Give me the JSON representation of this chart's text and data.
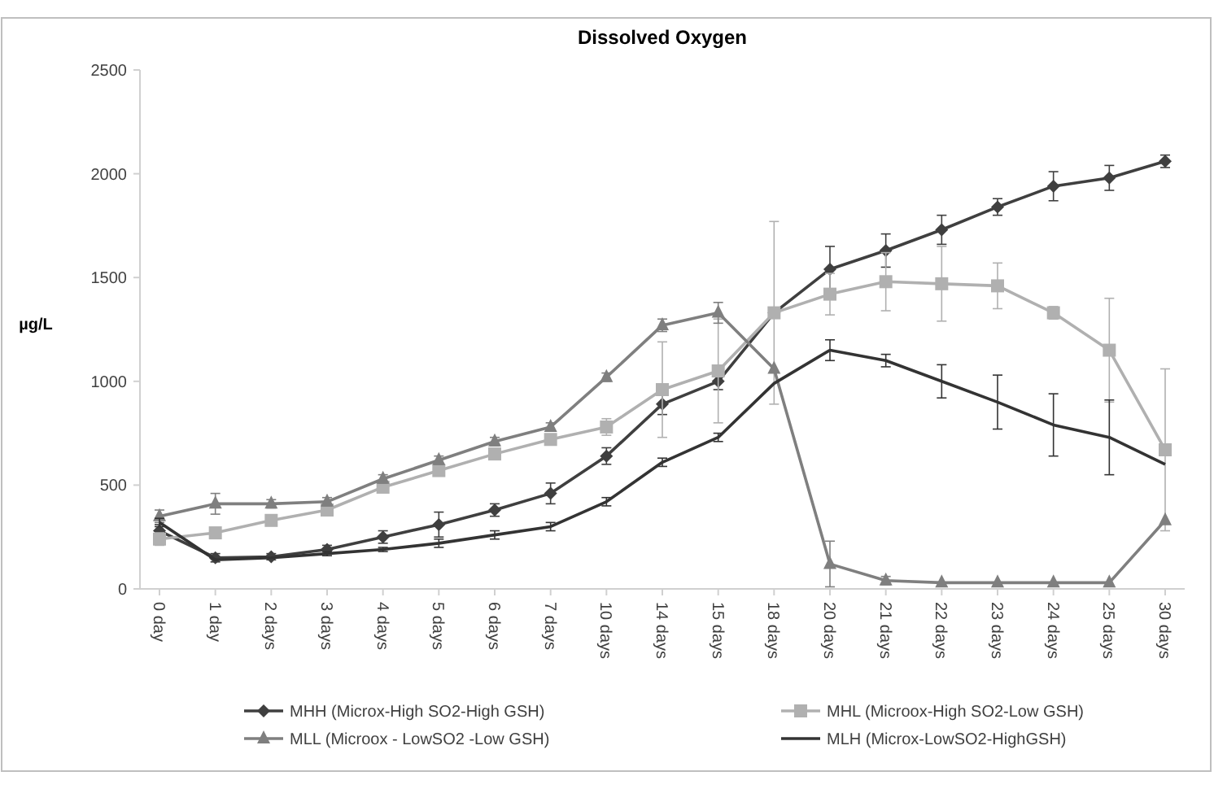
{
  "chart_data": {
    "type": "line",
    "title": "Dissolved Oxygen",
    "ylabel": "µg/L",
    "categories": [
      "0 day",
      "1 day",
      "2 days",
      "3 days",
      "4 days",
      "5 days",
      "6 days",
      "7 days",
      "10 days",
      "14 days",
      "15 days",
      "18 days",
      "20 days",
      "21 days",
      "22 days",
      "23 days",
      "24 days",
      "25 days",
      "30 days"
    ],
    "ylim": [
      0,
      2500
    ],
    "yticks": [
      0,
      500,
      1000,
      1500,
      2000,
      2500
    ],
    "grid": false,
    "legend": "bottom",
    "series": [
      {
        "name": "MHH (Microx-High SO2-High GSH)",
        "color": "#3f3f3f",
        "marker": "diamond",
        "values": [
          280,
          150,
          155,
          190,
          250,
          310,
          380,
          460,
          640,
          890,
          1000,
          1330,
          1540,
          1630,
          1730,
          1840,
          1940,
          1980,
          2060
        ],
        "errors": [
          30,
          20,
          15,
          20,
          30,
          60,
          30,
          50,
          40,
          50,
          40,
          null,
          110,
          80,
          70,
          40,
          70,
          60,
          30
        ]
      },
      {
        "name": "MHL (Microox-High SO2-Low GSH)",
        "color": "#b0b0b0",
        "marker": "square",
        "values": [
          240,
          270,
          330,
          380,
          490,
          570,
          650,
          720,
          780,
          960,
          1050,
          1330,
          1420,
          1480,
          1470,
          1460,
          1330,
          1150,
          670
        ],
        "errors": [
          30,
          20,
          20,
          20,
          20,
          20,
          20,
          20,
          40,
          230,
          250,
          440,
          100,
          140,
          180,
          110,
          30,
          250,
          390
        ]
      },
      {
        "name": "MLL (Microox - LowSO2 -Low GSH)",
        "color": "#7f7f7f",
        "marker": "triangle",
        "values": [
          350,
          410,
          410,
          420,
          530,
          620,
          710,
          780,
          1020,
          1270,
          1330,
          1060,
          120,
          40,
          30,
          30,
          30,
          30,
          330
        ],
        "errors": [
          30,
          50,
          20,
          20,
          20,
          20,
          20,
          20,
          20,
          30,
          50,
          null,
          110,
          20,
          null,
          null,
          null,
          null,
          null
        ]
      },
      {
        "name": "MLH (Microx-LowSO2-HighGSH)",
        "color": "#333333",
        "marker": "none",
        "values": [
          320,
          140,
          150,
          170,
          190,
          220,
          260,
          300,
          420,
          610,
          730,
          990,
          1150,
          1100,
          1000,
          900,
          790,
          730,
          600
        ],
        "errors": [
          20,
          null,
          null,
          10,
          10,
          20,
          20,
          20,
          20,
          20,
          20,
          null,
          50,
          30,
          80,
          130,
          150,
          180,
          null
        ]
      }
    ]
  }
}
